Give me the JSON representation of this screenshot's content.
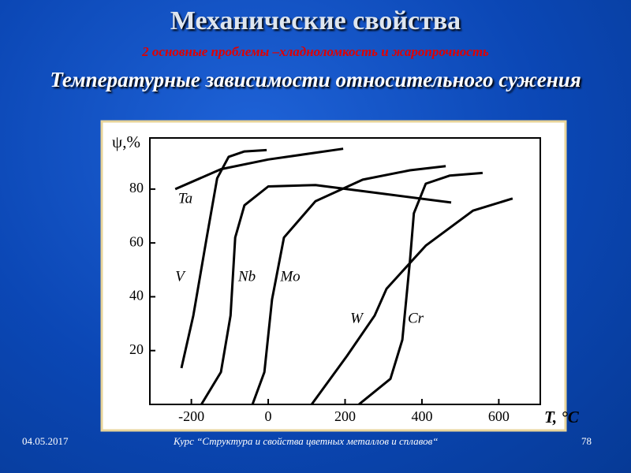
{
  "slide": {
    "title": "Механические свойства",
    "subtitle": "2 основные проблемы –хладноломкость и жаропрочность",
    "date": "04.05.2017",
    "course": "Курс “Структура и свойства цветных металлов и сплавов“",
    "page": "78"
  },
  "chart_data": {
    "type": "line",
    "title": "Температурные зависимости относительного сужения",
    "x_label": "T, °C",
    "y_label": "ψ,%",
    "xlim": [
      -308,
      708
    ],
    "ylim": [
      0,
      99
    ],
    "xticks": [
      -200,
      0,
      200,
      400,
      600
    ],
    "yticks": [
      20,
      40,
      60,
      80
    ],
    "series": [
      {
        "name": "Ta",
        "color": "#000000",
        "x": [
          -242,
          -123,
          0,
          195
        ],
        "values": [
          80,
          87.4,
          91,
          95
        ]
      },
      {
        "name": "V",
        "color": "#000000",
        "x": [
          -226,
          -195,
          -160,
          -133,
          -103,
          -62,
          -4
        ],
        "values": [
          13.5,
          33,
          62,
          84,
          92,
          94,
          94.5
        ]
      },
      {
        "name": "Nb",
        "color": "#000000",
        "x": [
          -174,
          -123,
          -98,
          -86,
          -62,
          0,
          123,
          287,
          476
        ],
        "values": [
          0,
          12,
          33,
          62,
          74,
          81,
          81.5,
          78.5,
          75
        ]
      },
      {
        "name": "Mo",
        "color": "#000000",
        "x": [
          -41,
          -10,
          10,
          41,
          123,
          246,
          369,
          462
        ],
        "values": [
          0,
          12,
          39,
          62,
          75.5,
          83.5,
          87,
          88.5
        ]
      },
      {
        "name": "W",
        "color": "#000000",
        "x": [
          113,
          205,
          277,
          308,
          410,
          533,
          636
        ],
        "values": [
          0,
          18,
          33,
          43,
          59,
          72,
          76.5
        ]
      },
      {
        "name": "Cr",
        "color": "#000000",
        "x": [
          236,
          318,
          349,
          369,
          379,
          410,
          472,
          558
        ],
        "values": [
          0,
          9.5,
          24,
          53.5,
          71,
          82,
          85,
          86
        ]
      }
    ]
  }
}
